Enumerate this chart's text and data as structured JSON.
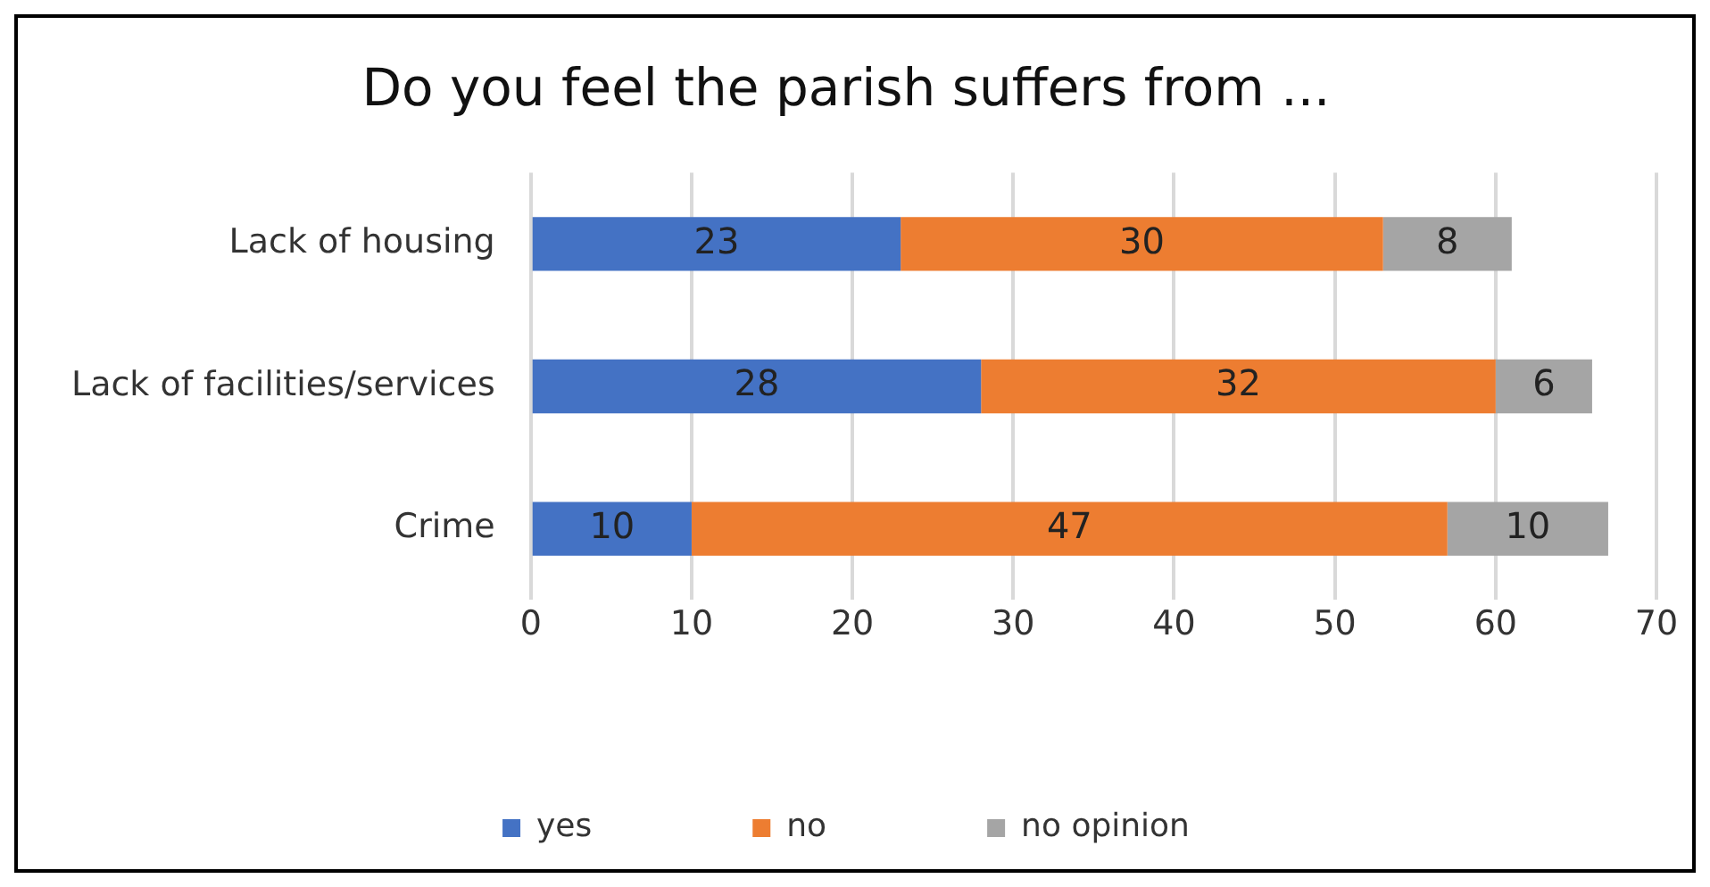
{
  "chart_data": {
    "type": "bar",
    "orientation": "horizontal",
    "stacked": true,
    "title": "Do you feel the parish suffers from ...",
    "categories": [
      "Lack of housing",
      "Lack of facilities/services",
      "Crime"
    ],
    "series": [
      {
        "name": "yes",
        "color": "#4472c4",
        "values": [
          23,
          28,
          10
        ]
      },
      {
        "name": "no",
        "color": "#ed7d31",
        "values": [
          30,
          32,
          47
        ]
      },
      {
        "name": "no opinion",
        "color": "#a5a5a5",
        "values": [
          8,
          6,
          10
        ]
      }
    ],
    "xlim": [
      0,
      70
    ],
    "xticks": [
      0,
      10,
      20,
      30,
      40,
      50,
      60,
      70
    ],
    "grid": "x",
    "legend": "bottom",
    "data_labels": true
  }
}
